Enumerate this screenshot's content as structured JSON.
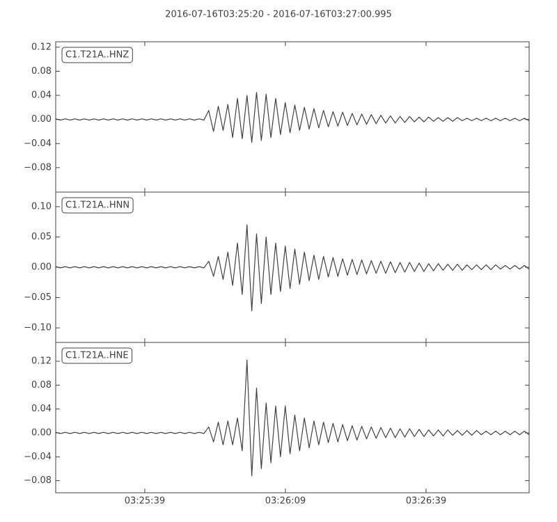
{
  "title": "2016-07-16T03:25:20  -  2016-07-16T03:27:00.995",
  "x_axis": {
    "xlim": [
      "2016-07-16T03:25:20",
      "2016-07-16T03:27:00.995"
    ],
    "xticks": [
      {
        "value": "2016-07-16T03:25:39",
        "label": "03:25:39"
      },
      {
        "value": "2016-07-16T03:26:09",
        "label": "03:26:09"
      },
      {
        "value": "2016-07-16T03:26:39",
        "label": "03:26:39"
      }
    ]
  },
  "chart_data": [
    {
      "type": "line",
      "legend": "upper left",
      "grid": false,
      "ylim": [
        -0.1206,
        0.129
      ],
      "yticks": [
        {
          "value": 0.12,
          "label": "0.12"
        },
        {
          "value": 0.08,
          "label": "0.08"
        },
        {
          "value": 0.04,
          "label": "0.04"
        },
        {
          "value": 0,
          "label": "0.00"
        },
        {
          "value": -0.04,
          "label": "−0.04"
        },
        {
          "value": -0.08,
          "label": "−0.08"
        }
      ],
      "series": [
        {
          "name": "C1.T21A..HNZ",
          "color": "#404040",
          "values": [
            0.001,
            -0.001,
            0.001,
            -0.001,
            0.001,
            -0.001,
            0.001,
            -0.001,
            0.001,
            -0.001,
            0.001,
            -0.001,
            0.001,
            -0.001,
            0.001,
            -0.001,
            0.001,
            -0.001,
            0.001,
            -0.001,
            0.001,
            -0.001,
            0.001,
            -0.001,
            0.001,
            -0.001,
            0.001,
            -0.001,
            0.001,
            -0.001,
            0.001,
            -0.001,
            0.015,
            -0.02,
            0.022,
            -0.018,
            0.025,
            -0.03,
            0.035,
            -0.032,
            0.04,
            -0.038,
            0.045,
            -0.035,
            0.042,
            -0.03,
            0.035,
            -0.025,
            0.028,
            -0.022,
            0.024,
            -0.018,
            0.02,
            -0.016,
            0.018,
            -0.014,
            0.015,
            -0.012,
            0.013,
            -0.011,
            0.012,
            -0.01,
            0.01,
            -0.009,
            0.009,
            -0.008,
            0.008,
            -0.007,
            0.007,
            -0.006,
            0.006,
            -0.006,
            0.005,
            -0.005,
            0.005,
            -0.004,
            0.004,
            -0.004,
            0.004,
            -0.003,
            0.003,
            -0.003,
            0.003,
            -0.003,
            0.003,
            -0.002,
            0.002,
            -0.002,
            0.002,
            -0.002,
            0.002,
            -0.002,
            0.002,
            -0.002,
            0.002,
            -0.002,
            0.002,
            -0.002,
            0.002,
            -0.002
          ]
        }
      ]
    },
    {
      "type": "line",
      "legend": "upper left",
      "grid": false,
      "ylim": [
        -0.124,
        0.124
      ],
      "yticks": [
        {
          "value": 0.1,
          "label": "0.10"
        },
        {
          "value": 0.05,
          "label": "0.05"
        },
        {
          "value": 0,
          "label": "0.00"
        },
        {
          "value": -0.05,
          "label": "−0.05"
        },
        {
          "value": -0.1,
          "label": "−0.10"
        }
      ],
      "series": [
        {
          "name": "C1.T21A..HNN",
          "color": "#404040",
          "values": [
            0.001,
            -0.001,
            0.001,
            -0.001,
            0.001,
            -0.001,
            0.001,
            -0.001,
            0.001,
            -0.001,
            0.001,
            -0.001,
            0.001,
            -0.001,
            0.001,
            -0.001,
            0.001,
            -0.001,
            0.001,
            -0.001,
            0.001,
            -0.001,
            0.001,
            -0.001,
            0.001,
            -0.001,
            0.001,
            -0.001,
            0.001,
            -0.001,
            0.001,
            -0.001,
            0.01,
            -0.015,
            0.018,
            -0.02,
            0.025,
            -0.03,
            0.04,
            -0.045,
            0.07,
            -0.072,
            0.055,
            -0.06,
            0.05,
            -0.045,
            0.04,
            -0.04,
            0.035,
            -0.035,
            0.03,
            -0.028,
            0.025,
            -0.022,
            0.02,
            -0.02,
            0.018,
            -0.016,
            0.016,
            -0.015,
            0.014,
            -0.013,
            0.013,
            -0.012,
            0.012,
            -0.011,
            0.011,
            -0.01,
            0.01,
            -0.01,
            0.009,
            -0.009,
            0.008,
            -0.008,
            0.008,
            -0.007,
            0.007,
            -0.007,
            0.006,
            -0.006,
            0.006,
            -0.005,
            0.005,
            -0.005,
            0.005,
            -0.005,
            0.004,
            -0.004,
            0.004,
            -0.004,
            0.004,
            -0.004,
            0.004,
            -0.003,
            0.003,
            -0.003,
            0.003,
            -0.003,
            0.003,
            -0.003
          ]
        }
      ]
    },
    {
      "type": "line",
      "legend": "upper left",
      "grid": false,
      "ylim": [
        -0.1002,
        0.1515
      ],
      "yticks": [
        {
          "value": 0.12,
          "label": "0.12"
        },
        {
          "value": 0.08,
          "label": "0.08"
        },
        {
          "value": 0.04,
          "label": "0.04"
        },
        {
          "value": 0,
          "label": "0.00"
        },
        {
          "value": -0.04,
          "label": "−0.04"
        },
        {
          "value": -0.08,
          "label": "−0.08"
        }
      ],
      "series": [
        {
          "name": "C1.T21A..HNE",
          "color": "#404040",
          "values": [
            0.001,
            -0.001,
            0.001,
            -0.001,
            0.001,
            -0.001,
            0.001,
            -0.001,
            0.001,
            -0.001,
            0.001,
            -0.001,
            0.001,
            -0.001,
            0.001,
            -0.001,
            0.001,
            -0.001,
            0.001,
            -0.001,
            0.001,
            -0.001,
            0.001,
            -0.001,
            0.001,
            -0.001,
            0.001,
            -0.001,
            0.001,
            -0.001,
            0.001,
            -0.001,
            0.01,
            -0.015,
            0.018,
            -0.02,
            0.02,
            -0.02,
            0.025,
            -0.03,
            0.122,
            -0.072,
            0.075,
            -0.06,
            0.05,
            -0.05,
            0.045,
            -0.04,
            0.045,
            -0.035,
            0.03,
            -0.03,
            0.025,
            -0.025,
            0.02,
            -0.02,
            0.018,
            -0.016,
            0.016,
            -0.015,
            0.014,
            -0.013,
            0.012,
            -0.012,
            0.011,
            -0.01,
            0.01,
            -0.009,
            0.009,
            -0.008,
            0.008,
            -0.008,
            0.007,
            -0.007,
            0.007,
            -0.006,
            0.006,
            -0.006,
            0.005,
            -0.005,
            0.005,
            -0.005,
            0.005,
            -0.004,
            0.004,
            -0.004,
            0.004,
            -0.004,
            0.004,
            -0.003,
            0.003,
            -0.003,
            0.003,
            -0.003,
            0.003,
            -0.003,
            0.003,
            -0.003,
            0.003,
            -0.003
          ]
        }
      ]
    }
  ]
}
